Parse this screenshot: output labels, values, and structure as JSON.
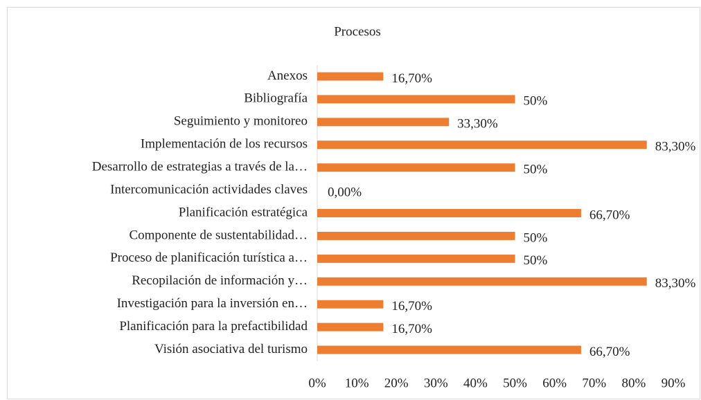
{
  "chart_data": {
    "type": "bar",
    "orientation": "horizontal",
    "title": "Procesos",
    "categories": [
      "Anexos",
      "Bibliografía",
      "Seguimiento y monitoreo ",
      "Implementación de los recursos ",
      "Desarrollo de estrategias a través de la…",
      "Intercomunicación actividades claves ",
      "Planificación estratégica ",
      "Componente de sustentabilidad…",
      "Proceso de planificación turística a…",
      "Recopilación de información y…",
      "Investigación para la inversión en…",
      "Planificación para la prefactibilidad ",
      "Visión asociativa del turismo "
    ],
    "values": [
      16.7,
      50,
      33.3,
      83.3,
      50,
      0,
      66.7,
      50,
      50,
      83.3,
      16.7,
      16.7,
      66.7
    ],
    "value_labels": [
      "16,70%",
      "50%",
      "33,30%",
      "83,30%",
      "50%",
      "0,00%",
      "66,70%",
      "50%",
      "50%",
      "83,30%",
      "16,70%",
      "16,70%",
      "66,70%"
    ],
    "color": "#ed7d31",
    "xlim": [
      0,
      90
    ],
    "xticks": [
      {
        "value": 0,
        "label": "0%"
      },
      {
        "value": 10,
        "label": "10%"
      },
      {
        "value": 20,
        "label": "20%"
      },
      {
        "value": 30,
        "label": "30%"
      },
      {
        "value": 40,
        "label": "40%"
      },
      {
        "value": 50,
        "label": "50%"
      },
      {
        "value": 60,
        "label": "60%"
      },
      {
        "value": 70,
        "label": "70%"
      },
      {
        "value": 80,
        "label": "80%"
      },
      {
        "value": 90,
        "label": "90%"
      }
    ],
    "grid": false
  }
}
